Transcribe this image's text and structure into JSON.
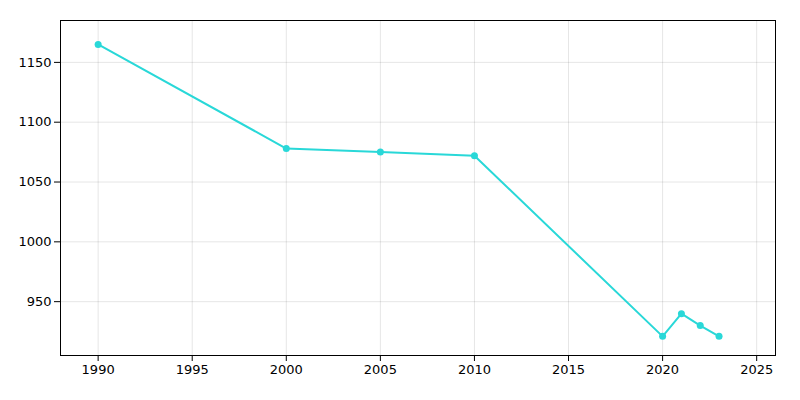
{
  "chart_data": {
    "type": "line",
    "x": [
      1990,
      2000,
      2005,
      2010,
      2020,
      2021,
      2022,
      2023
    ],
    "values": [
      1165,
      1078,
      1075,
      1072,
      921,
      940,
      930,
      921
    ],
    "color": "#29D8D8",
    "marker": "circle",
    "xlim": [
      1988,
      2026
    ],
    "ylim": [
      905,
      1185
    ],
    "xticks": [
      1990,
      1995,
      2000,
      2005,
      2010,
      2015,
      2020,
      2025
    ],
    "yticks": [
      950,
      1000,
      1050,
      1100,
      1150
    ],
    "grid": true
  }
}
